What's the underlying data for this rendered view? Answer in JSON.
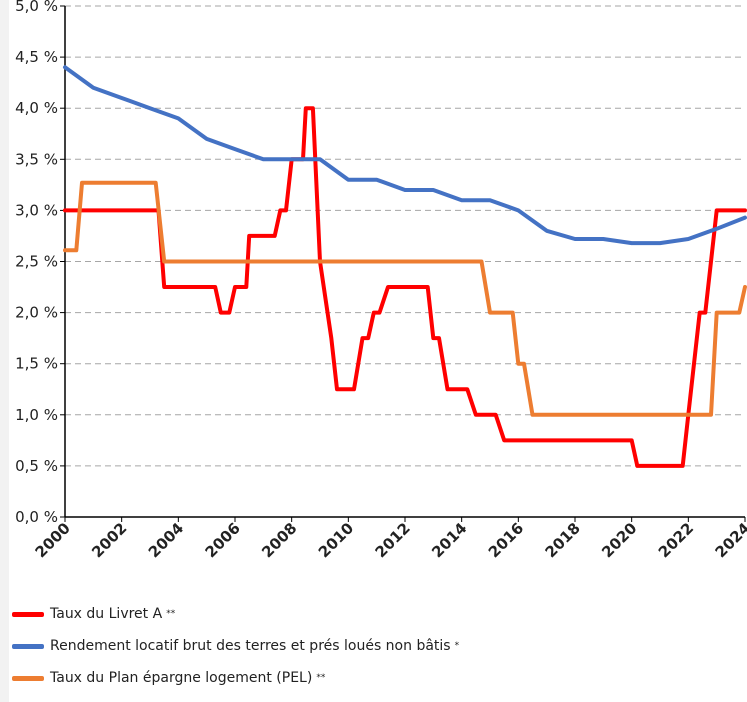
{
  "chart_data": {
    "type": "line",
    "xlim": [
      2000,
      2024
    ],
    "ylim": [
      0,
      5
    ],
    "grid": true,
    "legend_placement": "bottom",
    "x_ticks": [
      2000,
      2002,
      2004,
      2006,
      2008,
      2010,
      2012,
      2014,
      2016,
      2018,
      2020,
      2022,
      2024
    ],
    "y_ticks": [
      0,
      0.5,
      1,
      1.5,
      2,
      2.5,
      3,
      3.5,
      4,
      4.5,
      5
    ],
    "x_tick_labels": [
      "2000",
      "2002",
      "2004",
      "2006",
      "2008",
      "2010",
      "2012",
      "2014",
      "2016",
      "2018",
      "2020",
      "2022",
      "2024"
    ],
    "y_tick_labels": [
      "0,0 %",
      "0,5 %",
      "1,0 %",
      "1,5 %",
      "2,0 %",
      "2,5 %",
      "3,0 %",
      "3,5 %",
      "4,0 %",
      "4,5 %",
      "5,0 %"
    ],
    "series": [
      {
        "name": "Taux du Livret A",
        "note": "**",
        "color": "#ff0000",
        "points": [
          [
            2000,
            3.0
          ],
          [
            2003.3,
            3.0
          ],
          [
            2003.5,
            2.25
          ],
          [
            2005.3,
            2.25
          ],
          [
            2005.5,
            2.0
          ],
          [
            2005.8,
            2.0
          ],
          [
            2006.0,
            2.25
          ],
          [
            2006.4,
            2.25
          ],
          [
            2006.5,
            2.75
          ],
          [
            2007.4,
            2.75
          ],
          [
            2007.6,
            3.0
          ],
          [
            2007.8,
            3.0
          ],
          [
            2008.0,
            3.5
          ],
          [
            2008.4,
            3.5
          ],
          [
            2008.5,
            4.0
          ],
          [
            2008.75,
            4.0
          ],
          [
            2009.0,
            2.5
          ],
          [
            2009.4,
            1.75
          ],
          [
            2009.6,
            1.25
          ],
          [
            2010.2,
            1.25
          ],
          [
            2010.5,
            1.75
          ],
          [
            2010.7,
            1.75
          ],
          [
            2010.9,
            2.0
          ],
          [
            2011.1,
            2.0
          ],
          [
            2011.4,
            2.25
          ],
          [
            2012.8,
            2.25
          ],
          [
            2013.0,
            1.75
          ],
          [
            2013.2,
            1.75
          ],
          [
            2013.5,
            1.25
          ],
          [
            2014.2,
            1.25
          ],
          [
            2014.5,
            1.0
          ],
          [
            2015.2,
            1.0
          ],
          [
            2015.5,
            0.75
          ],
          [
            2020.0,
            0.75
          ],
          [
            2020.2,
            0.5
          ],
          [
            2021.8,
            0.5
          ],
          [
            2022.0,
            1.0
          ],
          [
            2022.4,
            2.0
          ],
          [
            2022.6,
            2.0
          ],
          [
            2023.0,
            3.0
          ],
          [
            2024.0,
            3.0
          ]
        ]
      },
      {
        "name": "Rendement locatif brut des terres et prés loués non bâtis",
        "note": "*",
        "color": "#4472c4",
        "points": [
          [
            2000,
            4.4
          ],
          [
            2001,
            4.2
          ],
          [
            2002,
            4.1
          ],
          [
            2003,
            4.0
          ],
          [
            2004,
            3.9
          ],
          [
            2005,
            3.7
          ],
          [
            2006,
            3.6
          ],
          [
            2007,
            3.5
          ],
          [
            2008,
            3.5
          ],
          [
            2009,
            3.5
          ],
          [
            2010,
            3.3
          ],
          [
            2011,
            3.3
          ],
          [
            2012,
            3.2
          ],
          [
            2013,
            3.2
          ],
          [
            2014,
            3.1
          ],
          [
            2015,
            3.1
          ],
          [
            2016,
            3.0
          ],
          [
            2017,
            2.8
          ],
          [
            2018,
            2.72
          ],
          [
            2019,
            2.72
          ],
          [
            2020,
            2.68
          ],
          [
            2021,
            2.68
          ],
          [
            2022,
            2.72
          ],
          [
            2023,
            2.82
          ],
          [
            2024,
            2.93
          ]
        ]
      },
      {
        "name": "Taux du Plan épargne logement (PEL)",
        "note": "**",
        "color": "#ed7d31",
        "points": [
          [
            2000,
            2.61
          ],
          [
            2000.4,
            2.61
          ],
          [
            2000.6,
            3.27
          ],
          [
            2003.2,
            3.27
          ],
          [
            2003.5,
            2.5
          ],
          [
            2014.7,
            2.5
          ],
          [
            2015.0,
            2.0
          ],
          [
            2015.8,
            2.0
          ],
          [
            2016.0,
            1.5
          ],
          [
            2016.2,
            1.5
          ],
          [
            2016.5,
            1.0
          ],
          [
            2022.8,
            1.0
          ],
          [
            2023.0,
            2.0
          ],
          [
            2023.8,
            2.0
          ],
          [
            2024.0,
            2.25
          ]
        ]
      }
    ]
  }
}
